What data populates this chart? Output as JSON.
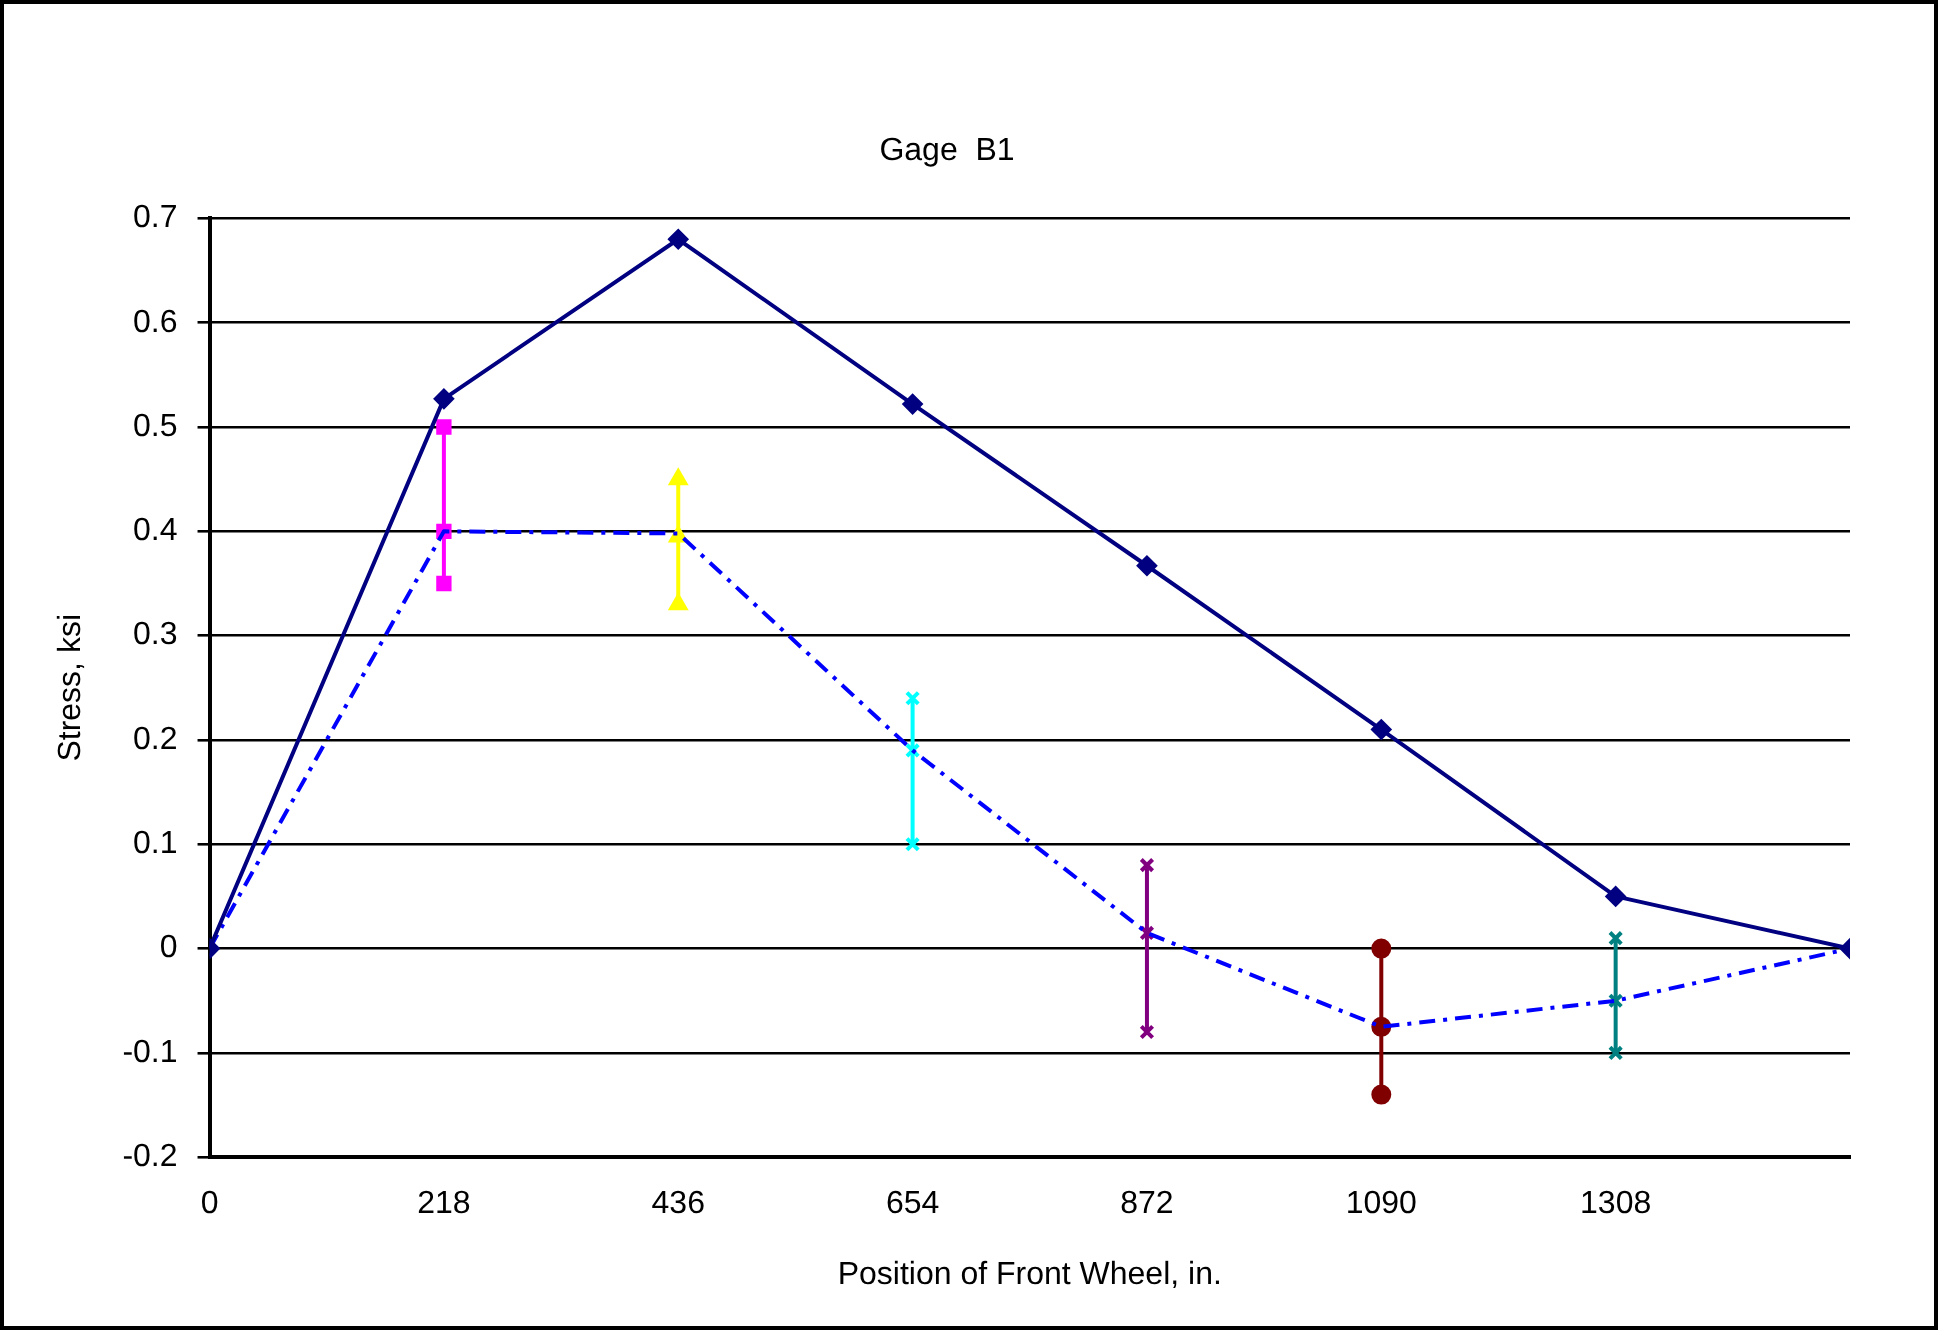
{
  "chart_data": {
    "type": "line",
    "title": "Gage  B1",
    "xlabel": "Position of Front Wheel, in.",
    "ylabel": "Stress, ksi",
    "x": [
      0,
      218,
      436,
      654,
      872,
      1090,
      1308,
      1526
    ],
    "series": [
      {
        "color": "#000080",
        "marker": "diamond",
        "line_style": "solid",
        "values": [
          0,
          0.527,
          0.68,
          0.522,
          0.367,
          0.21,
          0.05,
          0
        ]
      },
      {
        "color": "#0000ff",
        "marker": "none",
        "line_style": "dashed",
        "values": [
          0,
          0.4,
          0.398,
          0.19,
          0.015,
          -0.075,
          -0.05,
          0
        ]
      },
      {
        "type": "line",
        "color": "#ff00ff",
        "marker": "square",
        "line_style": "solid",
        "x": [
          218,
          218,
          218
        ],
        "values": [
          0.5,
          0.4,
          0.35
        ]
      },
      {
        "type": "line",
        "color": "#ffff00",
        "marker": "triangle",
        "line_style": "solid",
        "x": [
          436,
          436,
          436
        ],
        "values": [
          0.45,
          0.395,
          0.33
        ]
      },
      {
        "type": "line",
        "color": "#00ffff",
        "marker": "cross",
        "line_style": "solid",
        "x": [
          654,
          654,
          654
        ],
        "values": [
          0.24,
          0.19,
          0.1
        ]
      },
      {
        "type": "line",
        "color": "#800080",
        "marker": "cross",
        "line_style": "solid",
        "x": [
          872,
          872,
          872
        ],
        "values": [
          0.08,
          0.015,
          -0.08
        ]
      },
      {
        "type": "line",
        "color": "#800000",
        "marker": "circle",
        "line_style": "solid",
        "x": [
          1090,
          1090,
          1090
        ],
        "values": [
          0,
          -0.075,
          -0.14
        ]
      },
      {
        "type": "line",
        "color": "#008080",
        "marker": "cross",
        "line_style": "solid",
        "x": [
          1308,
          1308,
          1308
        ],
        "values": [
          0.01,
          -0.05,
          -0.1
        ]
      }
    ],
    "xlim": [
      0,
      1526
    ],
    "xticks": [
      0,
      218,
      436,
      654,
      872,
      1090,
      1308
    ],
    "ylim": [
      -0.2,
      0.7
    ],
    "yticks": [
      -0.2,
      -0.1,
      0,
      0.1,
      0.2,
      0.3,
      0.4,
      0.5,
      0.6,
      0.7
    ],
    "grid": "y",
    "legend": false
  }
}
